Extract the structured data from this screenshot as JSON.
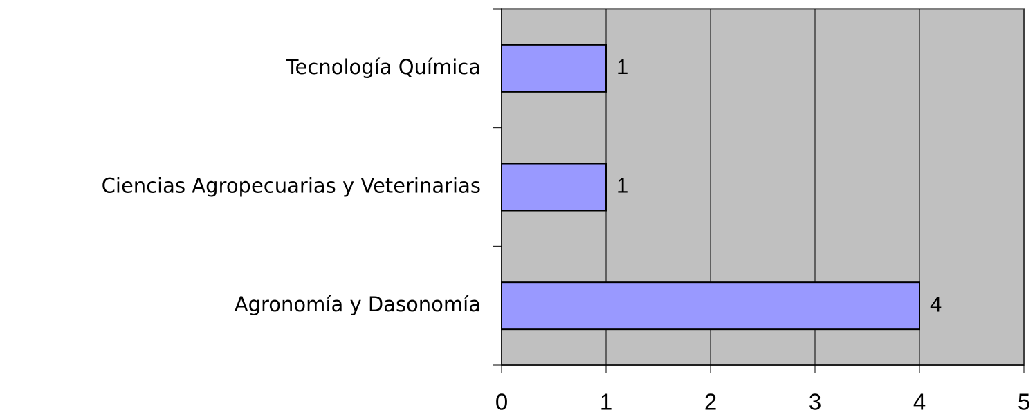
{
  "chart_data": {
    "type": "bar",
    "orientation": "horizontal",
    "categories": [
      "Tecnología Química",
      "Ciencias Agropecuarias y Veterinarias",
      "Agronomía y Dasonomía"
    ],
    "values": [
      1,
      1,
      4
    ],
    "color": "#9999ff",
    "xlim": [
      0,
      5
    ],
    "xticks": [
      0,
      1,
      2,
      3,
      4,
      5
    ],
    "grid": true
  }
}
